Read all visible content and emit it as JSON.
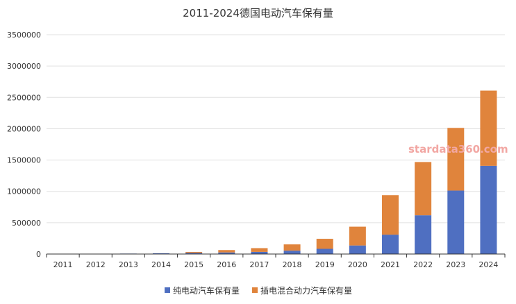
{
  "chart_data": {
    "type": "bar",
    "stacked": true,
    "title": "2011-2024德国电动汽车保有量",
    "categories": [
      "2011",
      "2012",
      "2013",
      "2014",
      "2015",
      "2016",
      "2017",
      "2018",
      "2019",
      "2020",
      "2021",
      "2022",
      "2023",
      "2024"
    ],
    "series": [
      {
        "name": "纯电动汽车保有量",
        "color": "#4f6fc1",
        "values": [
          2300,
          4500,
          7100,
          12200,
          18900,
          25500,
          34000,
          53800,
          83200,
          136600,
          309100,
          618500,
          1013000,
          1408000
        ]
      },
      {
        "name": "插电混合动力汽车保有量",
        "color": "#e0843c",
        "values": [
          0,
          0,
          0,
          0,
          15000,
          38000,
          60000,
          100000,
          160000,
          300000,
          630000,
          850000,
          1000000,
          1200000
        ]
      }
    ],
    "ylim": [
      0,
      3500000
    ],
    "yticks": [
      "0",
      "500000",
      "1000000",
      "1500000",
      "2000000",
      "2500000",
      "3000000",
      "3500000"
    ],
    "grid": true,
    "legend_position": "bottom",
    "watermark": "stardata360.com"
  }
}
